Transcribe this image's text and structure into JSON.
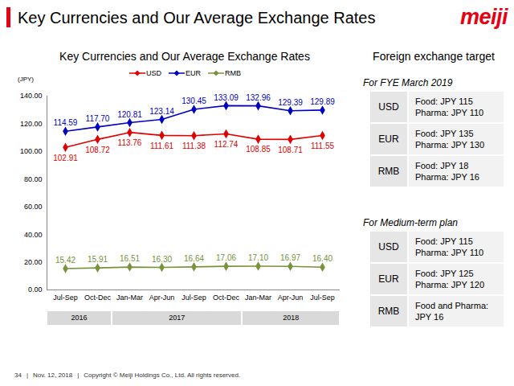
{
  "header": {
    "title": "Key Currencies and Our Average Exchange Rates",
    "logo": "meiji"
  },
  "chart_data": {
    "type": "line",
    "title": "Key Currencies and Our Average Exchange Rates",
    "ylabel": "(JPY)",
    "categories": [
      "Jul-Sep",
      "Oct-Dec",
      "Jan-Mar",
      "Apr-Jun",
      "Jul-Sep",
      "Oct-Dec",
      "Jan-Mar",
      "Apr-Jun",
      "Jul-Sep"
    ],
    "years": [
      "2016",
      "2016",
      "2017",
      "2017",
      "2017",
      "2017",
      "2018",
      "2018",
      "2018"
    ],
    "series": [
      {
        "name": "USD",
        "color": "#e00000",
        "marker": "diamond",
        "values": [
          102.91,
          108.72,
          113.76,
          111.61,
          111.38,
          112.74,
          108.85,
          108.71,
          111.55
        ],
        "value_labels": [
          "102.91",
          "108.72",
          "113.76",
          "111.61",
          "111.38",
          "112.74",
          "108.85",
          "108.71",
          "111.55"
        ]
      },
      {
        "name": "EUR",
        "color": "#0000c0",
        "marker": "diamond",
        "values": [
          114.59,
          117.7,
          120.81,
          123.14,
          130.45,
          133.09,
          132.96,
          129.39,
          129.89
        ],
        "value_labels": [
          "114.59",
          "117.70",
          "120.81",
          "123.14",
          "130.45",
          "133.09",
          "132.96",
          "129.39",
          "129.89"
        ]
      },
      {
        "name": "RMB",
        "color": "#77933c",
        "marker": "diamond",
        "values": [
          15.42,
          15.91,
          16.51,
          16.3,
          16.64,
          17.06,
          17.1,
          16.97,
          16.4
        ],
        "value_labels": [
          "15.42",
          "15.91",
          "16.51",
          "16.30",
          "16.64",
          "17.06",
          "17.10",
          "16.97",
          "16.40"
        ]
      }
    ],
    "ylim": [
      0,
      140
    ],
    "yticks": [
      {
        "value": 0,
        "label": "0.00"
      },
      {
        "value": 20,
        "label": "20.00"
      },
      {
        "value": 40,
        "label": "40.00"
      },
      {
        "value": 60,
        "label": "60.00"
      },
      {
        "value": 80,
        "label": "80.00"
      },
      {
        "value": 100,
        "label": "100.00"
      },
      {
        "value": 120,
        "label": "120.00"
      },
      {
        "value": 140,
        "label": "140.00"
      }
    ],
    "grid": false,
    "legend": "top",
    "data_labels": true
  },
  "targets": {
    "title": "Foreign exchange target",
    "sections": [
      {
        "heading": "For FYE March 2019",
        "rows": [
          {
            "currency": "USD",
            "lines": [
              "Food: JPY 115",
              "Pharma: JPY 110"
            ]
          },
          {
            "currency": "EUR",
            "lines": [
              "Food: JPY 135",
              "Pharma: JPY 130"
            ]
          },
          {
            "currency": "RMB",
            "lines": [
              "Food: JPY 18",
              "Pharma: JPY 16"
            ]
          }
        ]
      },
      {
        "heading": "For Medium-term plan",
        "rows": [
          {
            "currency": "USD",
            "lines": [
              "Food: JPY 115",
              "Pharma: JPY 110"
            ]
          },
          {
            "currency": "EUR",
            "lines": [
              "Food: JPY 125",
              "Pharma: JPY 120"
            ]
          },
          {
            "currency": "RMB",
            "lines": [
              "Food and Pharma:",
              "JPY 16"
            ]
          }
        ]
      }
    ]
  },
  "footer": [
    "34",
    "|",
    "Nov. 12, 2018",
    "|",
    "Copyright © Meiji Holdings Co., Ltd. All rights reserved."
  ]
}
